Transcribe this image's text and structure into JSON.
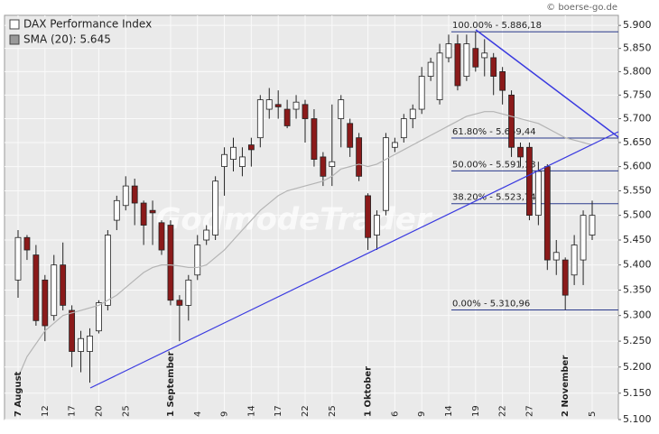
{
  "chart_data": {
    "type": "candlestick",
    "title": "DAX Performance Index",
    "copyright": "© boerse-go.de",
    "watermark": "GodmodeTrader",
    "categories": [
      "7 August",
      null,
      null,
      "12",
      null,
      null,
      "17",
      null,
      null,
      "20",
      null,
      null,
      "25",
      null,
      null,
      null,
      null,
      "1 September",
      null,
      null,
      "4",
      null,
      null,
      "9",
      null,
      null,
      "14",
      null,
      null,
      "17",
      null,
      null,
      "22",
      null,
      null,
      "25",
      null,
      null,
      null,
      "1 Oktober",
      null,
      null,
      "6",
      null,
      null,
      "9",
      null,
      null,
      "14",
      null,
      null,
      "19",
      null,
      null,
      "22",
      null,
      null,
      "27",
      null,
      null,
      null,
      "2 November",
      null,
      null,
      "5"
    ],
    "series": [
      {
        "name": "DAX Performance Index",
        "up_color": "#ffffff",
        "down_color": "#8b1a1a",
        "open": [
          5370,
          5455,
          5420,
          5370,
          5300,
          5400,
          5310,
          5230,
          5230,
          5270,
          5320,
          5490,
          5520,
          5560,
          5525,
          5510,
          5485,
          5480,
          5330,
          5320,
          5380,
          5450,
          5460,
          5600,
          5615,
          5600,
          5645,
          5660,
          5720,
          5730,
          5720,
          5720,
          5730,
          5700,
          5620,
          5600,
          5700,
          5690,
          5660,
          5540,
          5460,
          5510,
          5640,
          5660,
          5700,
          5720,
          5790,
          5740,
          5830,
          5860,
          5790,
          5850,
          5830,
          5830,
          5800,
          5750,
          5640,
          5640,
          5500,
          5600,
          5410,
          5410,
          5380,
          5410,
          5460
        ],
        "high": [
          5470,
          5460,
          5440,
          5380,
          5420,
          5445,
          5320,
          5270,
          5275,
          5330,
          5470,
          5540,
          5580,
          5575,
          5530,
          5530,
          5490,
          5490,
          5340,
          5380,
          5460,
          5480,
          5580,
          5640,
          5660,
          5640,
          5660,
          5750,
          5765,
          5760,
          5740,
          5750,
          5740,
          5720,
          5630,
          5730,
          5750,
          5700,
          5670,
          5545,
          5510,
          5670,
          5660,
          5710,
          5730,
          5810,
          5830,
          5860,
          5880,
          5880,
          5880,
          5886,
          5870,
          5840,
          5810,
          5760,
          5650,
          5650,
          5610,
          5605,
          5450,
          5415,
          5460,
          5510,
          5530
        ],
        "low": [
          5335,
          5410,
          5280,
          5250,
          5290,
          5310,
          5200,
          5190,
          5170,
          5265,
          5310,
          5470,
          5510,
          5480,
          5440,
          5440,
          5420,
          5320,
          5250,
          5290,
          5370,
          5440,
          5450,
          5540,
          5590,
          5580,
          5600,
          5640,
          5700,
          5700,
          5680,
          5700,
          5650,
          5600,
          5560,
          5560,
          5640,
          5620,
          5570,
          5430,
          5430,
          5500,
          5630,
          5650,
          5680,
          5710,
          5780,
          5730,
          5820,
          5760,
          5780,
          5800,
          5790,
          5750,
          5730,
          5620,
          5600,
          5490,
          5480,
          5390,
          5380,
          5311,
          5360,
          5360,
          5450
        ],
        "close": [
          5455,
          5430,
          5290,
          5280,
          5400,
          5320,
          5230,
          5255,
          5260,
          5325,
          5460,
          5530,
          5560,
          5525,
          5480,
          5505,
          5430,
          5330,
          5320,
          5370,
          5440,
          5470,
          5570,
          5625,
          5640,
          5620,
          5635,
          5740,
          5740,
          5725,
          5685,
          5735,
          5700,
          5615,
          5580,
          5610,
          5740,
          5640,
          5580,
          5455,
          5500,
          5660,
          5650,
          5700,
          5720,
          5790,
          5820,
          5840,
          5860,
          5770,
          5860,
          5810,
          5840,
          5790,
          5760,
          5640,
          5620,
          5500,
          5590,
          5410,
          5425,
          5340,
          5440,
          5500,
          5500
        ]
      },
      {
        "name": "SMA (20): 5.645",
        "type": "line",
        "color": "#b4b4b4",
        "values": [
          5180,
          5220,
          5245,
          5270,
          5285,
          5300,
          5305,
          5310,
          5315,
          5320,
          5330,
          5340,
          5355,
          5370,
          5385,
          5395,
          5400,
          5400,
          5398,
          5395,
          5395,
          5400,
          5415,
          5430,
          5450,
          5470,
          5490,
          5510,
          5525,
          5540,
          5550,
          5555,
          5560,
          5565,
          5570,
          5580,
          5595,
          5600,
          5605,
          5600,
          5605,
          5615,
          5625,
          5635,
          5645,
          5655,
          5665,
          5675,
          5685,
          5695,
          5705,
          5710,
          5715,
          5715,
          5710,
          5705,
          5700,
          5695,
          5690,
          5680,
          5670,
          5660,
          5655,
          5650,
          5645
        ]
      }
    ],
    "fib_levels": [
      {
        "label": "100.00% - 5.886,18",
        "value": 5886.18
      },
      {
        "label": "61.80% - 5.659,44",
        "value": 5659.44
      },
      {
        "label": "50.00% - 5.591,13",
        "value": 5591.13
      },
      {
        "label": "38.20% - 5.523,74",
        "value": 5523.74
      },
      {
        "label": "0.00% - 5.310,96",
        "value": 5310.96
      }
    ],
    "log_scale": true,
    "grid": true,
    "ylim": [
      5100,
      5922
    ],
    "yticks": [
      {
        "value": 5100,
        "label": "5.100"
      },
      {
        "value": 5150,
        "label": "5.150"
      },
      {
        "value": 5200,
        "label": "5.200"
      },
      {
        "value": 5250,
        "label": "5.250"
      },
      {
        "value": 5300,
        "label": "5.300"
      },
      {
        "value": 5350,
        "label": "5.350"
      },
      {
        "value": 5400,
        "label": "5.400"
      },
      {
        "value": 5450,
        "label": "5.450"
      },
      {
        "value": 5500,
        "label": "5.500"
      },
      {
        "value": 5550,
        "label": "5.550"
      },
      {
        "value": 5600,
        "label": "5.600"
      },
      {
        "value": 5650,
        "label": "5.650"
      },
      {
        "value": 5700,
        "label": "5.700"
      },
      {
        "value": 5750,
        "label": "5.750"
      },
      {
        "value": 5800,
        "label": "5.800"
      },
      {
        "value": 5850,
        "label": "5.850"
      },
      {
        "value": 5900,
        "label": "5.900"
      }
    ]
  }
}
